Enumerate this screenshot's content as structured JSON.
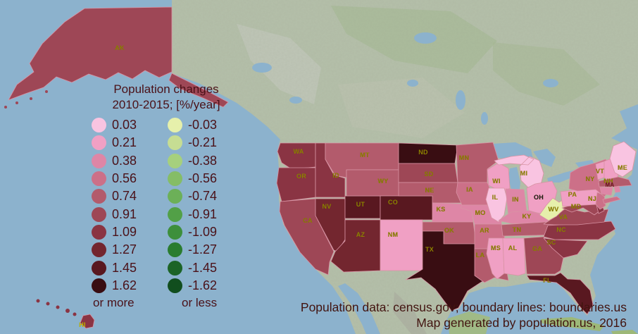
{
  "legend": {
    "title_line1": "Population changes",
    "title_line2": "2010-2015; [%/year]",
    "positive": [
      {
        "value": "0.03",
        "color": "#f9c4e1"
      },
      {
        "value": "0.21",
        "color": "#f0a0c4"
      },
      {
        "value": "0.38",
        "color": "#de86a6"
      },
      {
        "value": "0.56",
        "color": "#cc7088"
      },
      {
        "value": "0.74",
        "color": "#b35b6c"
      },
      {
        "value": "0.91",
        "color": "#9e4756"
      },
      {
        "value": "1.09",
        "color": "#8a3443"
      },
      {
        "value": "1.27",
        "color": "#73262f"
      },
      {
        "value": "1.45",
        "color": "#591820"
      },
      {
        "value": "1.62",
        "color": "#390d12"
      }
    ],
    "negative": [
      {
        "value": "-0.03",
        "color": "#e6f0ab"
      },
      {
        "value": "-0.21",
        "color": "#c6dd93"
      },
      {
        "value": "-0.38",
        "color": "#a6d07d"
      },
      {
        "value": "-0.56",
        "color": "#85bd66"
      },
      {
        "value": "-0.74",
        "color": "#6cb058"
      },
      {
        "value": "-0.91",
        "color": "#52a047"
      },
      {
        "value": "-1.09",
        "color": "#3d8f3b"
      },
      {
        "value": "-1.27",
        "color": "#2a7c2f"
      },
      {
        "value": "-1.45",
        "color": "#1c6426"
      },
      {
        "value": "-1.62",
        "color": "#114e1e"
      }
    ],
    "positive_footer": "or more",
    "negative_footer": "or less"
  },
  "credits": {
    "line1": "Population data: census.gov; boundary lines: boundaries.us",
    "line2": "Map generated by population.us, 2016"
  },
  "map": {
    "ocean_color": "#8cb2cd",
    "land_color": "#b5c0aa",
    "state_border_color": "#d893a4",
    "label_color": "#8f8300",
    "states": [
      {
        "id": "AK",
        "label": "AK",
        "value": "0.91",
        "color": "#9e4756"
      },
      {
        "id": "HI",
        "label": "HI",
        "value": "1.09",
        "color": "#8a3443",
        "label_color": "#c6ba00"
      },
      {
        "id": "WA",
        "label": "WA",
        "value": "1.09",
        "color": "#8a3443"
      },
      {
        "id": "OR",
        "label": "OR",
        "value": "1.09",
        "color": "#8a3443"
      },
      {
        "id": "CA",
        "label": "CA",
        "value": "0.91",
        "color": "#9e4756"
      },
      {
        "id": "ID",
        "label": "ID",
        "value": "1.09",
        "color": "#8a3443"
      },
      {
        "id": "NV",
        "label": "NV",
        "value": "1.27",
        "color": "#73262f"
      },
      {
        "id": "UT",
        "label": "UT",
        "value": "1.45",
        "color": "#591820"
      },
      {
        "id": "AZ",
        "label": "AZ",
        "value": "1.27",
        "color": "#73262f"
      },
      {
        "id": "MT",
        "label": "MT",
        "value": "0.74",
        "color": "#b35b6c"
      },
      {
        "id": "WY",
        "label": "WY",
        "value": "0.74",
        "color": "#b35b6c"
      },
      {
        "id": "CO",
        "label": "CO",
        "value": "1.45",
        "color": "#591820"
      },
      {
        "id": "NM",
        "label": "NM",
        "value": "0.21",
        "color": "#f0a0c4"
      },
      {
        "id": "ND",
        "label": "ND",
        "value": "1.62",
        "color": "#390d12"
      },
      {
        "id": "SD",
        "label": "SD",
        "value": "0.91",
        "color": "#9e4756"
      },
      {
        "id": "NE",
        "label": "NE",
        "value": "0.74",
        "color": "#b35b6c"
      },
      {
        "id": "KS",
        "label": "KS",
        "value": "0.38",
        "color": "#de86a6"
      },
      {
        "id": "OK",
        "label": "OK",
        "value": "0.74",
        "color": "#b35b6c"
      },
      {
        "id": "TX",
        "label": "TX",
        "value": "1.62",
        "color": "#390d12"
      },
      {
        "id": "MN",
        "label": "MN",
        "value": "0.74",
        "color": "#b35b6c"
      },
      {
        "id": "IA",
        "label": "IA",
        "value": "0.56",
        "color": "#cc7088"
      },
      {
        "id": "MO",
        "label": "MO",
        "value": "0.38",
        "color": "#de86a6"
      },
      {
        "id": "AR",
        "label": "AR",
        "value": "0.56",
        "color": "#cc7088"
      },
      {
        "id": "LA",
        "label": "LA",
        "value": "0.74",
        "color": "#b35b6c"
      },
      {
        "id": "WI",
        "label": "WI",
        "value": "0.21",
        "color": "#f0a0c4"
      },
      {
        "id": "IL",
        "label": "IL",
        "value": "0.03",
        "color": "#f9c4e1"
      },
      {
        "id": "MI",
        "label": "MI",
        "value": "0.03",
        "color": "#f9c4e1"
      },
      {
        "id": "IN",
        "label": "IN",
        "value": "0.38",
        "color": "#de86a6"
      },
      {
        "id": "OH",
        "label": "OH",
        "value": "0.21",
        "color": "#f0a0c4",
        "label_color": "#221e12"
      },
      {
        "id": "KY",
        "label": "KY",
        "value": "0.38",
        "color": "#de86a6"
      },
      {
        "id": "TN",
        "label": "TN",
        "value": "0.74",
        "color": "#b35b6c"
      },
      {
        "id": "MS",
        "label": "MS",
        "value": "0.21",
        "color": "#f0a0c4"
      },
      {
        "id": "AL",
        "label": "AL",
        "value": "0.21",
        "color": "#f0a0c4"
      },
      {
        "id": "GA",
        "label": "GA",
        "value": "0.91",
        "color": "#9e4756"
      },
      {
        "id": "FL",
        "label": "FL",
        "value": "1.45",
        "color": "#591820"
      },
      {
        "id": "SC",
        "label": "SC",
        "value": "1.09",
        "color": "#8a3443"
      },
      {
        "id": "NC",
        "label": "NC",
        "value": "1.09",
        "color": "#8a3443"
      },
      {
        "id": "VA",
        "label": "VA",
        "value": "0.91",
        "color": "#9e4756"
      },
      {
        "id": "WV",
        "label": "WV",
        "value": "-0.03",
        "color": "#e6f0ab"
      },
      {
        "id": "MD",
        "label": "MD",
        "value": "0.91",
        "color": "#9e4756"
      },
      {
        "id": "DE",
        "label": "",
        "value": "1.09",
        "color": "#8a3443"
      },
      {
        "id": "PA",
        "label": "PA",
        "value": "0.21",
        "color": "#f0a0c4"
      },
      {
        "id": "NJ",
        "label": "NJ",
        "value": "0.56",
        "color": "#cc7088"
      },
      {
        "id": "NY",
        "label": "NY",
        "value": "0.56",
        "color": "#cc7088"
      },
      {
        "id": "VT",
        "label": "VT",
        "value": "0.21",
        "color": "#f0a0c4"
      },
      {
        "id": "NH",
        "label": "NH",
        "value": "0.21",
        "color": "#f0a0c4"
      },
      {
        "id": "ME",
        "label": "ME",
        "value": "0.03",
        "color": "#f9c4e1"
      },
      {
        "id": "MA",
        "label": "MA",
        "value": "0.74",
        "color": "#b35b6c",
        "label_color": "#741822"
      },
      {
        "id": "CT",
        "label": "",
        "value": "0.38",
        "color": "#de86a6"
      },
      {
        "id": "RI",
        "label": "",
        "value": "0.38",
        "color": "#de86a6"
      }
    ]
  }
}
